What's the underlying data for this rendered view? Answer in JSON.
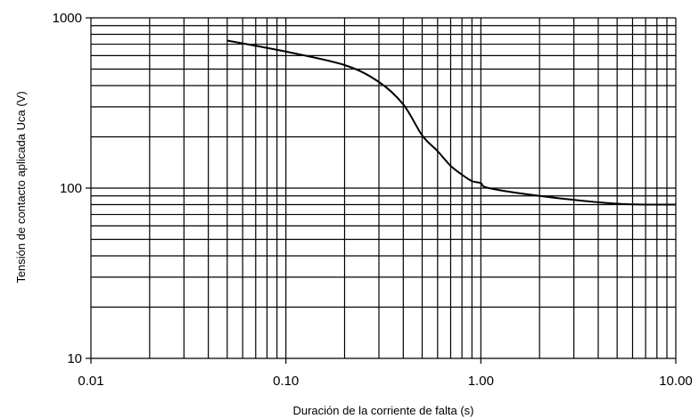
{
  "chart_data": {
    "type": "line",
    "title": "",
    "xlabel": "Duración de la corriente de falta (s)",
    "ylabel": "Tensión de contacto aplicada  Uca (V)",
    "xscale": "log",
    "yscale": "log",
    "xlim": [
      0.01,
      10
    ],
    "ylim": [
      10,
      1000
    ],
    "grid": true,
    "x_ticks": [
      0.01,
      0.1,
      1,
      10
    ],
    "x_tick_labels": [
      "0.01",
      "0.10",
      "1.00",
      "10.00"
    ],
    "y_ticks": [
      10,
      100,
      1000
    ],
    "y_tick_labels": [
      "10",
      "100",
      "1000"
    ],
    "series": [
      {
        "x": [
          0.05,
          0.1,
          0.2,
          0.3,
          0.4,
          0.5,
          0.6,
          0.7,
          0.8,
          0.9,
          1.0,
          1.1,
          2.0,
          5.0,
          10.0
        ],
        "y": [
          735,
          633,
          528,
          420,
          310,
          204,
          165,
          135,
          120,
          110,
          107,
          100,
          90,
          81,
          80
        ]
      }
    ]
  }
}
